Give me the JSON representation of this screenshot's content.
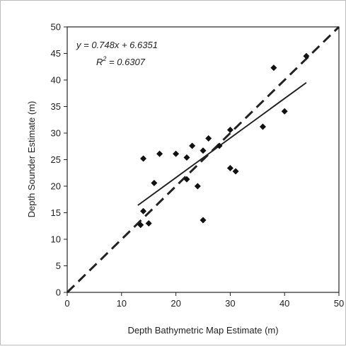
{
  "chart_data": {
    "type": "scatter",
    "title": "",
    "xlabel": "Depth Bathymetric Map Estimate (m)",
    "ylabel": "Depth Sounder Estimate (m)",
    "xlim": [
      0,
      50
    ],
    "ylim": [
      0,
      50
    ],
    "x_ticks": [
      "0",
      "10",
      "20",
      "30",
      "40",
      "50"
    ],
    "y_ticks": [
      "0",
      "5",
      "10",
      "15",
      "20",
      "25",
      "30",
      "35",
      "40",
      "45",
      "50"
    ],
    "grid": false,
    "annotations": {
      "equation": "y = 0.748x + 6.6351",
      "r2_label": "R",
      "r2_exponent": "2",
      "r2_value": " = 0.6307"
    },
    "series": [
      {
        "type": "scatter",
        "marker": "diamond",
        "color": "#111111",
        "points": [
          {
            "x": 13.5,
            "y": 12.7
          },
          {
            "x": 14.0,
            "y": 15.3
          },
          {
            "x": 14.0,
            "y": 25.2
          },
          {
            "x": 15.0,
            "y": 13.0
          },
          {
            "x": 16.0,
            "y": 20.6
          },
          {
            "x": 17.0,
            "y": 26.1
          },
          {
            "x": 20.0,
            "y": 26.1
          },
          {
            "x": 22.0,
            "y": 21.3
          },
          {
            "x": 22.0,
            "y": 25.4
          },
          {
            "x": 23.0,
            "y": 27.6
          },
          {
            "x": 24.0,
            "y": 20.0
          },
          {
            "x": 25.0,
            "y": 13.6
          },
          {
            "x": 25.0,
            "y": 26.7
          },
          {
            "x": 26.0,
            "y": 29.0
          },
          {
            "x": 28.0,
            "y": 27.6
          },
          {
            "x": 30.0,
            "y": 23.4
          },
          {
            "x": 30.0,
            "y": 30.6
          },
          {
            "x": 31.0,
            "y": 22.8
          },
          {
            "x": 36.0,
            "y": 31.2
          },
          {
            "x": 38.0,
            "y": 42.3
          },
          {
            "x": 40.0,
            "y": 34.1
          },
          {
            "x": 44.0,
            "y": 44.5
          }
        ]
      },
      {
        "type": "line",
        "style": "solid",
        "color": "#222222",
        "points": [
          {
            "x": 13.0,
            "y": 16.4
          },
          {
            "x": 44.0,
            "y": 39.5
          }
        ]
      },
      {
        "type": "line",
        "style": "dashed",
        "color": "#222222",
        "points": [
          {
            "x": 0,
            "y": 0
          },
          {
            "x": 50,
            "y": 50
          }
        ]
      }
    ]
  }
}
